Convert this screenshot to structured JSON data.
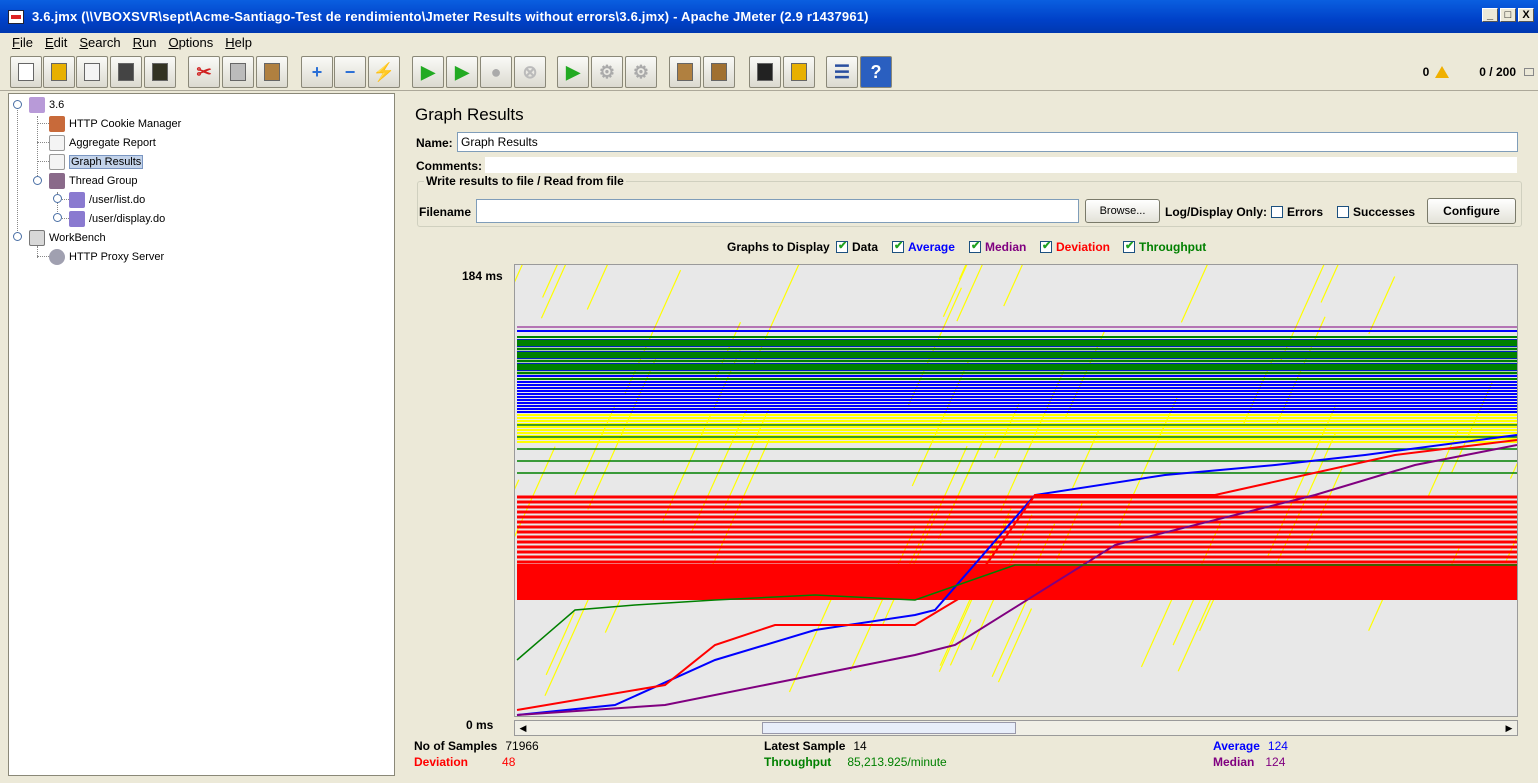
{
  "window": {
    "title": "3.6.jmx (\\\\VBOXSVR\\sept\\Acme-Santiago-Test de rendimiento\\Jmeter Results without errors\\3.6.jmx) - Apache JMeter (2.9 r1437961)",
    "min": "_",
    "max": "□",
    "close": "X"
  },
  "menu": [
    "File",
    "Edit",
    "Search",
    "Run",
    "Options",
    "Help"
  ],
  "toolbar": {
    "warnings": "0",
    "threads": "0 / 200",
    "buttons": [
      {
        "name": "new-icon",
        "glyph": "",
        "color": "#fff"
      },
      {
        "name": "open-icon",
        "glyph": "",
        "color": "#e8b000"
      },
      {
        "name": "close-file-icon",
        "glyph": "",
        "color": "#f4f4f4"
      },
      {
        "name": "save-icon",
        "glyph": "",
        "color": "#444"
      },
      {
        "name": "save-as-icon",
        "glyph": "",
        "color": "#332"
      },
      {
        "name": "cut-icon",
        "glyph": "✂",
        "color": "#d02020"
      },
      {
        "name": "copy-icon",
        "glyph": "",
        "color": "#bbb"
      },
      {
        "name": "paste-icon",
        "glyph": "",
        "color": "#b08040"
      },
      {
        "name": "expand-icon",
        "glyph": "+",
        "color": "#2a6fd6"
      },
      {
        "name": "collapse-icon",
        "glyph": "−",
        "color": "#2a6fd6"
      },
      {
        "name": "toggle-icon",
        "glyph": "⚡",
        "color": "#6b6bd6"
      },
      {
        "name": "start-icon",
        "glyph": "▶",
        "color": "#22aa22"
      },
      {
        "name": "start-no-timers-icon",
        "glyph": "▶",
        "color": "#22aa22"
      },
      {
        "name": "stop-icon",
        "glyph": "●",
        "color": "#aaa"
      },
      {
        "name": "shutdown-icon",
        "glyph": "⊗",
        "color": "#bbb"
      },
      {
        "name": "remote-start-icon",
        "glyph": "▶",
        "color": "#22aa22"
      },
      {
        "name": "remote-stop-icon",
        "glyph": "⚙",
        "color": "#aaa"
      },
      {
        "name": "remote-shutdown-icon",
        "glyph": "⚙",
        "color": "#aaa"
      },
      {
        "name": "clear-icon",
        "glyph": "",
        "color": "#b08040"
      },
      {
        "name": "clear-all-icon",
        "glyph": "",
        "color": "#a07030"
      },
      {
        "name": "search-icon",
        "glyph": "",
        "color": "#222"
      },
      {
        "name": "reset-search-icon",
        "glyph": "",
        "color": "#e8b000"
      },
      {
        "name": "function-helper-icon",
        "glyph": "☰",
        "color": "#2a4fa0"
      },
      {
        "name": "help-icon",
        "glyph": "?",
        "color": "#fff"
      }
    ]
  },
  "tree": {
    "items": [
      {
        "label": "3.6"
      },
      {
        "label": "HTTP Cookie Manager"
      },
      {
        "label": "Aggregate Report"
      },
      {
        "label": "Graph Results"
      },
      {
        "label": "Thread Group"
      },
      {
        "label": "/user/list.do"
      },
      {
        "label": "/user/display.do"
      },
      {
        "label": "WorkBench"
      },
      {
        "label": "HTTP Proxy Server"
      }
    ]
  },
  "panel": {
    "title": "Graph Results",
    "name_label": "Name:",
    "name_value": "Graph Results",
    "comments_label": "Comments:",
    "file_group_title": "Write results to file / Read from file",
    "filename_label": "Filename",
    "filename_value": "",
    "browse_label": "Browse...",
    "log_display_label": "Log/Display Only:",
    "errors_label": "Errors",
    "successes_label": "Successes",
    "configure_label": "Configure",
    "graphs_label": "Graphs to Display",
    "graph_options": [
      {
        "label": "Data",
        "color": "#000000",
        "checked": true
      },
      {
        "label": "Average",
        "color": "#0000ff",
        "checked": true
      },
      {
        "label": "Median",
        "color": "#800080",
        "checked": true
      },
      {
        "label": "Deviation",
        "color": "#ff0000",
        "checked": true
      },
      {
        "label": "Throughput",
        "color": "#008000",
        "checked": true
      }
    ]
  },
  "graph": {
    "y_max_label": "184  ms",
    "y_min_label": "0  ms"
  },
  "stats": {
    "samples_label": "No of Samples",
    "samples_value": "71966",
    "latest_label": "Latest Sample",
    "latest_value": "14",
    "average_label": "Average",
    "average_value": "124",
    "deviation_label": "Deviation",
    "deviation_value": "48",
    "throughput_label": "Throughput",
    "throughput_value": "85,213.925/minute",
    "median_label": "Median",
    "median_value": "124",
    "colors": {
      "average": "#0000ff",
      "deviation": "#ff0000",
      "throughput": "#008000",
      "median": "#800080"
    }
  }
}
